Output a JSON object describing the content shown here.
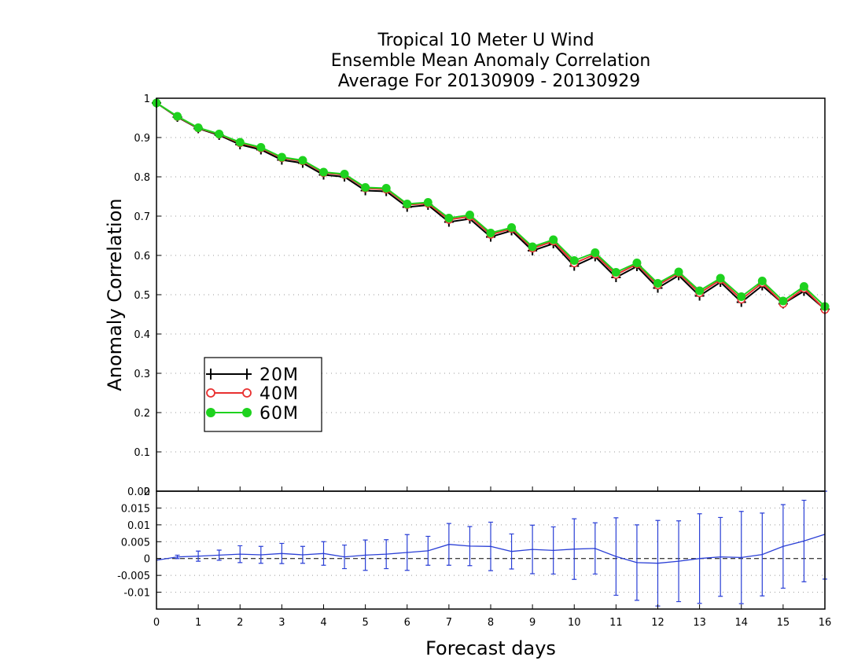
{
  "chart_data": [
    {
      "type": "line",
      "title": [
        "Tropical 10 Meter U Wind",
        "Ensemble Mean Anomaly Correlation",
        "Average For 20130909 - 20130929"
      ],
      "xlabel": "Forecast days",
      "ylabel": "Anomaly Correlation",
      "xlim": [
        0,
        16
      ],
      "ylim": [
        0,
        1
      ],
      "x_ticks": [
        "0",
        "1",
        "2",
        "3",
        "4",
        "5",
        "6",
        "7",
        "8",
        "9",
        "10",
        "11",
        "12",
        "13",
        "14",
        "15",
        "16"
      ],
      "y_ticks": [
        "0",
        "0.1",
        "0.2",
        "0.3",
        "0.4",
        "0.5",
        "0.6",
        "0.7",
        "0.8",
        "0.9",
        "1"
      ],
      "y_tick_values": [
        0,
        0.1,
        0.2,
        0.3,
        0.4,
        0.5,
        0.6,
        0.7,
        0.8,
        0.9,
        1
      ],
      "grid": "horizontal-dotted",
      "legend_position": "lower-left",
      "x": [
        0,
        0.5,
        1,
        1.5,
        2,
        2.5,
        3,
        3.5,
        4,
        4.5,
        5,
        5.5,
        6,
        6.5,
        7,
        7.5,
        8,
        8.5,
        9,
        9.5,
        10,
        10.5,
        11,
        11.5,
        12,
        12.5,
        13,
        13.5,
        14,
        14.5,
        15,
        15.5,
        16
      ],
      "series": [
        {
          "name": "20M",
          "color": "#000000",
          "marker": "plus",
          "values": [
            0.988,
            0.952,
            0.923,
            0.906,
            0.882,
            0.869,
            0.843,
            0.835,
            0.805,
            0.8,
            0.765,
            0.763,
            0.723,
            0.728,
            0.685,
            0.693,
            0.647,
            0.663,
            0.612,
            0.63,
            0.573,
            0.597,
            0.544,
            0.572,
            0.517,
            0.549,
            0.497,
            0.532,
            0.481,
            0.523,
            0.477,
            0.509,
            0.463
          ]
        },
        {
          "name": "40M",
          "color": "#e83030",
          "marker": "circle-open",
          "values": [
            0.988,
            0.953,
            0.924,
            0.908,
            0.886,
            0.873,
            0.848,
            0.84,
            0.81,
            0.805,
            0.771,
            0.768,
            0.729,
            0.732,
            0.691,
            0.699,
            0.653,
            0.668,
            0.618,
            0.636,
            0.58,
            0.603,
            0.551,
            0.578,
            0.524,
            0.555,
            0.504,
            0.538,
            0.488,
            0.53,
            0.477,
            0.516,
            0.462
          ]
        },
        {
          "name": "60M",
          "color": "#1ed21e",
          "marker": "circle-filled",
          "values": [
            0.988,
            0.954,
            0.925,
            0.909,
            0.888,
            0.875,
            0.85,
            0.842,
            0.812,
            0.807,
            0.773,
            0.771,
            0.731,
            0.735,
            0.695,
            0.703,
            0.657,
            0.671,
            0.622,
            0.64,
            0.587,
            0.607,
            0.557,
            0.581,
            0.529,
            0.558,
            0.51,
            0.542,
            0.495,
            0.535,
            0.484,
            0.521,
            0.47
          ]
        }
      ]
    },
    {
      "type": "line",
      "subtype": "errorbar",
      "xlim": [
        0,
        16
      ],
      "ylim": [
        -0.015,
        0.02
      ],
      "y_ticks": [
        "0.02",
        "0.015",
        "0.01",
        "0.005",
        "0",
        "-0.005",
        "-0.01"
      ],
      "y_tick_values": [
        0.02,
        0.015,
        0.01,
        0.005,
        0,
        -0.005,
        -0.01
      ],
      "grid": "horizontal-dotted",
      "color": "#2a3fd6",
      "x": [
        0,
        0.5,
        1,
        1.5,
        2,
        2.5,
        3,
        3.5,
        4,
        4.5,
        5,
        5.5,
        6,
        6.5,
        7,
        7.5,
        8,
        8.5,
        9,
        9.5,
        10,
        10.5,
        11,
        11.5,
        12,
        12.5,
        13,
        13.5,
        14,
        14.5,
        15,
        15.5,
        16
      ],
      "values": [
        -0.0005,
        0.0005,
        0.0007,
        0.001,
        0.0013,
        0.0011,
        0.0015,
        0.0011,
        0.0015,
        0.0005,
        0.001,
        0.0013,
        0.0018,
        0.0023,
        0.0042,
        0.0037,
        0.0036,
        0.0021,
        0.0027,
        0.0024,
        0.0028,
        0.003,
        0.0006,
        -0.0012,
        -0.0014,
        -0.0008,
        0.0,
        0.0005,
        0.0003,
        0.0012,
        0.0036,
        0.0052,
        0.0072
      ],
      "errors": [
        0,
        0.0005,
        0.0015,
        0.0015,
        0.0025,
        0.0025,
        0.003,
        0.0025,
        0.0035,
        0.0035,
        0.0045,
        0.0043,
        0.0053,
        0.0043,
        0.0062,
        0.0058,
        0.0072,
        0.0052,
        0.0072,
        0.007,
        0.009,
        0.0076,
        0.0115,
        0.0112,
        0.0127,
        0.012,
        0.0133,
        0.0117,
        0.0137,
        0.0123,
        0.0124,
        0.0121,
        0.0133
      ]
    }
  ]
}
